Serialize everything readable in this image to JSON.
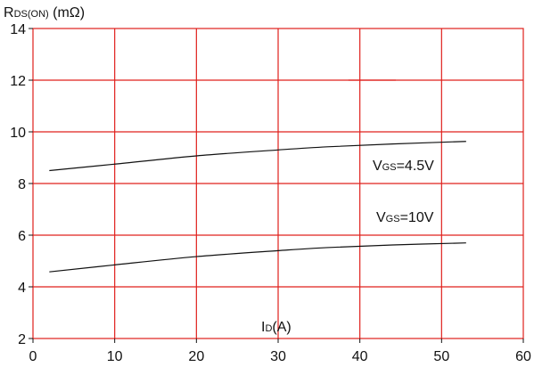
{
  "chart_data": {
    "type": "line",
    "title": "",
    "ylabel_main": "R",
    "ylabel_sub": "DS(ON)",
    "ylabel_unit": " (mΩ)",
    "xlabel_main": "I",
    "xlabel_sub": "D",
    "xlabel_unit": "(A)",
    "xlim": [
      0,
      60
    ],
    "ylim": [
      2,
      14
    ],
    "xticks": [
      0,
      10,
      20,
      30,
      40,
      50,
      60
    ],
    "yticks": [
      2,
      4,
      6,
      8,
      10,
      12,
      14
    ],
    "grid": true,
    "colors": {
      "grid": "#e0201c",
      "line": "#111111",
      "axis": "#111111"
    },
    "series": [
      {
        "label_main": "V",
        "label_sub": "GS",
        "label_value": "=4.5V",
        "x": [
          2,
          10,
          20,
          30,
          36,
          44,
          53
        ],
        "y": [
          8.5,
          8.75,
          9.07,
          9.3,
          9.42,
          9.53,
          9.63
        ]
      },
      {
        "label_main": "V",
        "label_sub": "GS",
        "label_value": "=10V",
        "x": [
          2,
          10,
          20,
          30,
          36,
          44,
          53
        ],
        "y": [
          4.58,
          4.85,
          5.17,
          5.4,
          5.52,
          5.62,
          5.7
        ]
      }
    ],
    "annotation_segment": {
      "x": [
        38.6,
        44.4
      ],
      "y": [
        12,
        12
      ]
    }
  }
}
